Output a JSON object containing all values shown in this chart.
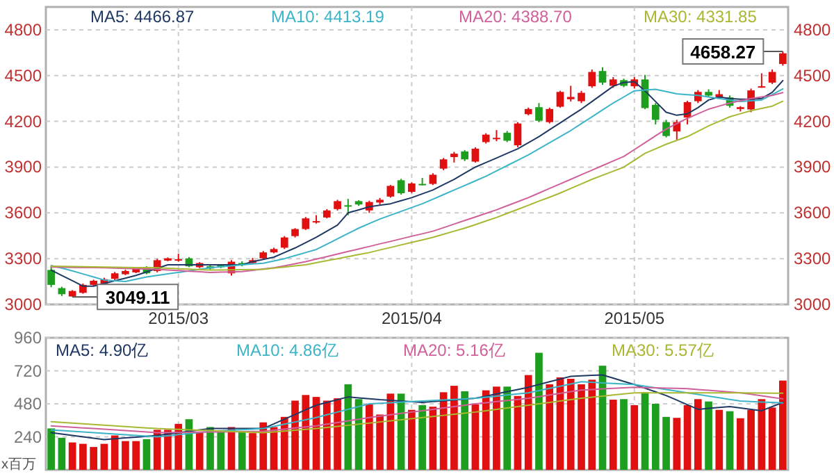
{
  "chart_data": [
    {
      "type": "candlestick",
      "categories": [
        null,
        null,
        null,
        null,
        null,
        null,
        null,
        null,
        null,
        null,
        null,
        null,
        "2015/03",
        null,
        null,
        null,
        null,
        null,
        null,
        null,
        null,
        null,
        null,
        null,
        null,
        null,
        null,
        null,
        null,
        null,
        null,
        null,
        null,
        null,
        "2015/04",
        null,
        null,
        null,
        null,
        null,
        null,
        null,
        null,
        null,
        null,
        null,
        null,
        null,
        null,
        null,
        null,
        null,
        null,
        null,
        null,
        "2015/05",
        null,
        null,
        null,
        null,
        null,
        null,
        null,
        null,
        null,
        null,
        null,
        null,
        null,
        null
      ],
      "ohlc": [
        [
          3226,
          3250,
          3113,
          3128
        ],
        [
          3107,
          3116,
          3055,
          3067
        ],
        [
          3052,
          3094,
          3049.11,
          3088
        ],
        [
          3076,
          3137,
          3070,
          3128
        ],
        [
          3128,
          3162,
          3120,
          3155
        ],
        [
          3134,
          3175,
          3128,
          3165
        ],
        [
          3168,
          3213,
          3155,
          3204
        ],
        [
          3198,
          3228,
          3192,
          3219
        ],
        [
          3210,
          3245,
          3205,
          3235
        ],
        [
          3244,
          3250,
          3198,
          3204
        ],
        [
          3219,
          3299,
          3210,
          3290
        ],
        [
          3287,
          3308,
          3283,
          3302
        ],
        [
          3290,
          3332,
          3280,
          3296
        ],
        [
          3302,
          3310,
          3244,
          3250
        ],
        [
          3244,
          3277,
          3238,
          3271
        ],
        [
          3250,
          3256,
          3228,
          3235
        ],
        [
          3256,
          3262,
          3238,
          3244
        ],
        [
          3204,
          3290,
          3189,
          3280
        ],
        [
          3271,
          3283,
          3250,
          3259
        ],
        [
          3271,
          3305,
          3265,
          3290
        ],
        [
          3302,
          3350,
          3296,
          3341
        ],
        [
          3341,
          3372,
          3335,
          3363
        ],
        [
          3372,
          3448,
          3363,
          3439
        ],
        [
          3448,
          3500,
          3439,
          3494
        ],
        [
          3494,
          3573,
          3488,
          3564
        ],
        [
          3537,
          3585,
          3530,
          3546
        ],
        [
          3570,
          3625,
          3564,
          3616
        ],
        [
          3625,
          3686,
          3616,
          3677
        ],
        [
          3650,
          3692,
          3585,
          3641
        ],
        [
          3677,
          3683,
          3646,
          3655
        ],
        [
          3616,
          3680,
          3600,
          3671
        ],
        [
          3668,
          3698,
          3655,
          3686
        ],
        [
          3707,
          3783,
          3700,
          3777
        ],
        [
          3814,
          3823,
          3720,
          3729
        ],
        [
          3738,
          3800,
          3730,
          3793
        ],
        [
          3790,
          3829,
          3780,
          3786
        ],
        [
          3790,
          3860,
          3783,
          3850
        ],
        [
          3890,
          3960,
          3880,
          3951
        ],
        [
          3966,
          4000,
          3930,
          3988
        ],
        [
          4003,
          4012,
          3940,
          3951
        ],
        [
          3936,
          4030,
          3930,
          4021
        ],
        [
          4064,
          4122,
          4055,
          4113
        ],
        [
          4085,
          4143,
          4070,
          4092
        ],
        [
          4125,
          4137,
          4064,
          4073
        ],
        [
          4043,
          4195,
          4030,
          4186
        ],
        [
          4247,
          4290,
          4240,
          4281
        ],
        [
          4293,
          4320,
          4195,
          4204
        ],
        [
          4195,
          4290,
          4186,
          4281
        ],
        [
          4296,
          4400,
          4290,
          4393
        ],
        [
          4345,
          4433,
          4330,
          4360
        ],
        [
          4332,
          4400,
          4320,
          4387
        ],
        [
          4430,
          4540,
          4420,
          4524
        ],
        [
          4530,
          4555,
          4440,
          4454
        ],
        [
          4433,
          4490,
          4420,
          4475
        ],
        [
          4470,
          4480,
          4424,
          4433
        ],
        [
          4430,
          4490,
          4415,
          4475
        ],
        [
          4475,
          4505,
          4280,
          4287
        ],
        [
          4308,
          4320,
          4180,
          4210
        ],
        [
          4195,
          4210,
          4095,
          4104
        ],
        [
          4134,
          4210,
          4080,
          4195
        ],
        [
          4225,
          4335,
          4180,
          4326
        ],
        [
          4332,
          4405,
          4320,
          4393
        ],
        [
          4393,
          4410,
          4360,
          4369
        ],
        [
          4357,
          4405,
          4350,
          4378
        ],
        [
          4357,
          4370,
          4290,
          4302
        ],
        [
          4281,
          4300,
          4265,
          4293
        ],
        [
          4278,
          4415,
          4260,
          4403
        ],
        [
          4424,
          4515,
          4420,
          4430
        ],
        [
          4454,
          4540,
          4445,
          4524
        ],
        [
          4576,
          4658.27,
          4565,
          4646
        ]
      ],
      "colors": [
        "#1e9e1e",
        "#1e9e1e",
        "#e01010",
        "#e01010",
        "#e01010",
        "#e01010",
        "#e01010",
        "#e01010",
        "#e01010",
        "#1e9e1e",
        "#e01010",
        "#e01010",
        "#e01010",
        "#1e9e1e",
        "#e01010",
        "#1e9e1e",
        "#1e9e1e",
        "#e01010",
        "#1e9e1e",
        "#e01010",
        "#e01010",
        "#e01010",
        "#e01010",
        "#e01010",
        "#e01010",
        "#e01010",
        "#e01010",
        "#e01010",
        "#1e9e1e",
        "#1e9e1e",
        "#e01010",
        "#e01010",
        "#e01010",
        "#1e9e1e",
        "#e01010",
        "#1e9e1e",
        "#e01010",
        "#e01010",
        "#e01010",
        "#1e9e1e",
        "#e01010",
        "#e01010",
        "#e01010",
        "#1e9e1e",
        "#e01010",
        "#e01010",
        "#1e9e1e",
        "#e01010",
        "#e01010",
        "#e01010",
        "#e01010",
        "#e01010",
        "#1e9e1e",
        "#e01010",
        "#1e9e1e",
        "#e01010",
        "#1e9e1e",
        "#1e9e1e",
        "#1e9e1e",
        "#e01010",
        "#e01010",
        "#e01010",
        "#1e9e1e",
        "#e01010",
        "#1e9e1e",
        "#e01010",
        "#e01010",
        "#e01010",
        "#e01010",
        "#e01010"
      ],
      "series": [
        {
          "type": "line",
          "name": "MA5: 4466.87",
          "color": "#1f3864",
          "values": [
            3225,
            3190,
            3155,
            3120,
            3120,
            3138,
            3155,
            3172,
            3190,
            3213,
            3237,
            3260,
            3260,
            3260,
            3260,
            3260,
            3260,
            3260,
            3260,
            3280,
            3295,
            3310,
            3340,
            3370,
            3405,
            3440,
            3480,
            3520,
            3600,
            3620,
            3640,
            3650,
            3660,
            3680,
            3700,
            3725,
            3750,
            3785,
            3820,
            3860,
            3900,
            3930,
            3960,
            3990,
            4020,
            4060,
            4100,
            4145,
            4190,
            4235,
            4280,
            4330,
            4380,
            4430,
            4455,
            4460,
            4400,
            4330,
            4260,
            4240,
            4250,
            4290,
            4340,
            4360,
            4350,
            4345,
            4345,
            4350,
            4390,
            4466.87
          ]
        },
        {
          "type": "line",
          "name": "MA10: 4413.19",
          "color": "#3cb4c8",
          "values": [
            3255,
            3238,
            3220,
            3200,
            3180,
            3160,
            3155,
            3150,
            3165,
            3180,
            3190,
            3200,
            3210,
            3220,
            3230,
            3240,
            3247,
            3253,
            3260,
            3265,
            3270,
            3285,
            3300,
            3320,
            3340,
            3360,
            3395,
            3430,
            3465,
            3500,
            3530,
            3560,
            3585,
            3610,
            3635,
            3660,
            3690,
            3720,
            3750,
            3780,
            3810,
            3840,
            3875,
            3910,
            3945,
            3980,
            4020,
            4060,
            4100,
            4140,
            4185,
            4230,
            4275,
            4320,
            4360,
            4400,
            4405,
            4410,
            4395,
            4380,
            4375,
            4370,
            4360,
            4350,
            4340,
            4330,
            4335,
            4340,
            4375,
            4413.19
          ]
        },
        {
          "type": "line",
          "name": "MA20: 4388.70",
          "color": "#d0609a",
          "values": [
            3245,
            3244,
            3243,
            3242,
            3241,
            3240,
            3238,
            3236,
            3234,
            3232,
            3230,
            3226,
            3222,
            3218,
            3214,
            3210,
            3212,
            3213,
            3215,
            3223,
            3232,
            3240,
            3253,
            3267,
            3280,
            3297,
            3313,
            3330,
            3347,
            3363,
            3380,
            3397,
            3413,
            3430,
            3447,
            3463,
            3480,
            3503,
            3527,
            3550,
            3573,
            3597,
            3620,
            3647,
            3673,
            3700,
            3730,
            3760,
            3790,
            3820,
            3850,
            3880,
            3910,
            3940,
            3970,
            4015,
            4060,
            4105,
            4150,
            4185,
            4220,
            4250,
            4280,
            4300,
            4320,
            4335,
            4350,
            4360,
            4370,
            4388.7
          ]
        },
        {
          "type": "line",
          "name": "MA30: 4331.85",
          "color": "#a8b832",
          "values": [
            3250,
            3249,
            3248,
            3247,
            3246,
            3245,
            3244,
            3243,
            3242,
            3241,
            3240,
            3237,
            3234,
            3231,
            3228,
            3225,
            3226,
            3227,
            3228,
            3229,
            3230,
            3238,
            3245,
            3253,
            3260,
            3273,
            3287,
            3300,
            3313,
            3327,
            3340,
            3357,
            3373,
            3390,
            3407,
            3423,
            3440,
            3460,
            3480,
            3500,
            3523,
            3547,
            3570,
            3597,
            3623,
            3650,
            3677,
            3703,
            3730,
            3760,
            3790,
            3820,
            3847,
            3873,
            3900,
            3945,
            3990,
            4020,
            4050,
            4075,
            4100,
            4135,
            4170,
            4200,
            4230,
            4250,
            4270,
            4285,
            4300,
            4331.85
          ]
        }
      ],
      "ylim": [
        3000,
        4950
      ],
      "yticks": [
        3000,
        3300,
        3600,
        3900,
        4200,
        4500,
        4800
      ],
      "y2lim": [
        3000,
        4950
      ],
      "y2ticks": [
        3000,
        3300,
        3600,
        3900,
        4200,
        4500,
        4800
      ],
      "grid": true,
      "legend": "top",
      "line_style": "solid",
      "annotations": [
        "3049.11",
        "4658.27"
      ]
    },
    {
      "type": "bar",
      "categories": [
        null,
        null,
        null,
        null,
        null,
        null,
        null,
        null,
        null,
        null,
        null,
        null,
        "2015/03",
        null,
        null,
        null,
        null,
        null,
        null,
        null,
        null,
        null,
        null,
        null,
        null,
        null,
        null,
        null,
        null,
        null,
        null,
        null,
        null,
        null,
        "2015/04",
        null,
        null,
        null,
        null,
        null,
        null,
        null,
        null,
        null,
        null,
        null,
        null,
        null,
        null,
        null,
        null,
        null,
        null,
        null,
        null,
        "2015/05",
        null,
        null,
        null,
        null,
        null,
        null,
        null,
        null,
        null,
        null,
        null,
        null,
        null,
        null
      ],
      "values": [
        301,
        233,
        199,
        189,
        166,
        189,
        250,
        209,
        209,
        223,
        291,
        291,
        334,
        368,
        277,
        311,
        277,
        311,
        277,
        267,
        345,
        311,
        385,
        503,
        544,
        530,
        503,
        520,
        622,
        514,
        476,
        402,
        554,
        554,
        436,
        470,
        459,
        564,
        611,
        571,
        476,
        578,
        605,
        605,
        537,
        689,
        851,
        622,
        672,
        662,
        622,
        655,
        757,
        510,
        514,
        470,
        564,
        480,
        385,
        378,
        470,
        514,
        497,
        436,
        426,
        375,
        436,
        514,
        453,
        649
      ],
      "colors": [
        "#1e9e1e",
        "#1e9e1e",
        "#e01010",
        "#e01010",
        "#e01010",
        "#e01010",
        "#e01010",
        "#e01010",
        "#e01010",
        "#1e9e1e",
        "#e01010",
        "#e01010",
        "#e01010",
        "#1e9e1e",
        "#e01010",
        "#1e9e1e",
        "#1e9e1e",
        "#e01010",
        "#1e9e1e",
        "#e01010",
        "#e01010",
        "#e01010",
        "#e01010",
        "#e01010",
        "#e01010",
        "#e01010",
        "#e01010",
        "#e01010",
        "#1e9e1e",
        "#1e9e1e",
        "#e01010",
        "#e01010",
        "#e01010",
        "#1e9e1e",
        "#e01010",
        "#1e9e1e",
        "#e01010",
        "#e01010",
        "#e01010",
        "#1e9e1e",
        "#e01010",
        "#e01010",
        "#e01010",
        "#1e9e1e",
        "#e01010",
        "#e01010",
        "#1e9e1e",
        "#e01010",
        "#e01010",
        "#e01010",
        "#e01010",
        "#e01010",
        "#1e9e1e",
        "#e01010",
        "#1e9e1e",
        "#e01010",
        "#1e9e1e",
        "#1e9e1e",
        "#1e9e1e",
        "#e01010",
        "#e01010",
        "#e01010",
        "#1e9e1e",
        "#e01010",
        "#1e9e1e",
        "#e01010",
        "#e01010",
        "#e01010",
        "#e01010",
        "#e01010"
      ],
      "series": [
        {
          "type": "line",
          "name": "MA5: 4.90亿",
          "color": "#1f3864",
          "values": [
            270,
            260,
            250,
            240,
            230,
            220,
            226,
            232,
            238,
            244,
            250,
            260,
            270,
            280,
            290,
            300,
            300,
            300,
            300,
            300,
            300,
            334,
            368,
            402,
            436,
            470,
            490,
            510,
            530,
            523,
            517,
            510,
            505,
            500,
            495,
            490,
            496,
            502,
            508,
            514,
            520,
            536,
            552,
            568,
            584,
            600,
            620,
            640,
            660,
            680,
            683,
            687,
            690,
            667,
            643,
            620,
            593,
            567,
            540,
            507,
            473,
            440,
            447,
            453,
            460,
            450,
            440,
            430,
            460,
            490
          ]
        },
        {
          "type": "line",
          "name": "MA10: 4.86亿",
          "color": "#3cb4c8",
          "values": [
            290,
            285,
            280,
            275,
            270,
            265,
            260,
            255,
            250,
            245,
            240,
            248,
            256,
            264,
            272,
            280,
            284,
            288,
            292,
            296,
            300,
            316,
            332,
            348,
            364,
            380,
            400,
            420,
            440,
            460,
            480,
            484,
            488,
            492,
            496,
            500,
            504,
            508,
            512,
            516,
            520,
            528,
            536,
            544,
            552,
            560,
            576,
            592,
            608,
            624,
            640,
            636,
            632,
            628,
            624,
            620,
            608,
            596,
            584,
            572,
            560,
            548,
            536,
            524,
            512,
            500,
            497,
            493,
            490,
            486
          ]
        },
        {
          "type": "line",
          "name": "MA20: 5.16亿",
          "color": "#d0609a",
          "values": [
            320,
            315,
            310,
            305,
            300,
            295,
            290,
            285,
            280,
            275,
            270,
            271,
            272,
            273,
            274,
            275,
            276,
            277,
            278,
            279,
            280,
            288,
            296,
            304,
            312,
            320,
            332,
            344,
            356,
            368,
            380,
            390,
            400,
            410,
            420,
            430,
            440,
            450,
            460,
            470,
            480,
            488,
            496,
            504,
            512,
            520,
            532,
            544,
            556,
            568,
            580,
            584,
            588,
            592,
            596,
            600,
            598,
            596,
            594,
            592,
            590,
            584,
            578,
            572,
            566,
            560,
            549,
            538,
            527,
            516
          ]
        },
        {
          "type": "line",
          "name": "MA30: 5.57亿",
          "color": "#a8b832",
          "values": [
            350,
            345,
            340,
            335,
            330,
            325,
            320,
            315,
            310,
            305,
            300,
            297,
            294,
            291,
            288,
            285,
            282,
            279,
            276,
            273,
            270,
            276,
            282,
            288,
            294,
            300,
            308,
            316,
            324,
            332,
            340,
            348,
            356,
            364,
            372,
            380,
            388,
            396,
            404,
            412,
            420,
            430,
            440,
            450,
            460,
            470,
            480,
            490,
            500,
            510,
            520,
            528,
            536,
            544,
            552,
            560,
            560,
            560,
            560,
            560,
            560,
            560,
            560,
            560,
            559,
            559,
            558,
            558,
            557,
            557
          ]
        }
      ],
      "ylim": [
        0,
        960
      ],
      "yticks": [
        240,
        480,
        720,
        960
      ],
      "ylabel": "x百万",
      "tick_labels": "y",
      "grid": true,
      "legend": "top",
      "line_style": "solid"
    }
  ]
}
